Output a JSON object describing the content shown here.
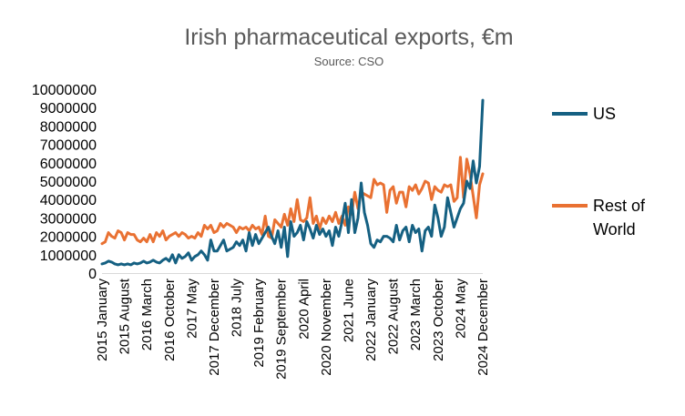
{
  "chart_data": {
    "type": "line",
    "title": "Irish pharmaceutical exports, €m",
    "subtitle": "Source: CSO",
    "xlabel": "",
    "ylabel": "",
    "ylim": [
      0,
      10000000
    ],
    "yticks": [
      0,
      1000000,
      2000000,
      3000000,
      4000000,
      5000000,
      6000000,
      7000000,
      8000000,
      9000000,
      10000000
    ],
    "ytick_labels": [
      "0",
      "1000000",
      "2000000",
      "3000000",
      "4000000",
      "5000000",
      "6000000",
      "7000000",
      "8000000",
      "9000000",
      "10000000"
    ],
    "x_start": "2015 January",
    "x_end": "2024 December",
    "xtick_labels": [
      "2015 January",
      "2015 August",
      "2016 March",
      "2016 October",
      "2017 May",
      "2017 December",
      "2018 July",
      "2019 February",
      "2019 September",
      "2020 April",
      "2020 November",
      "2021 June",
      "2022 January",
      "2022 August",
      "2023 March",
      "2023 October",
      "2024 May",
      "2024 December"
    ],
    "xtick_every": 7,
    "grid": false,
    "legend_position": "right",
    "series": [
      {
        "name": "US",
        "color": "#156082",
        "values": [
          500000,
          550000,
          650000,
          600000,
          500000,
          450000,
          500000,
          450000,
          500000,
          450000,
          550000,
          500000,
          550000,
          650000,
          550000,
          600000,
          700000,
          600000,
          550000,
          700000,
          800000,
          650000,
          1000000,
          550000,
          1000000,
          800000,
          900000,
          1100000,
          700000,
          900000,
          1000000,
          1200000,
          1000000,
          700000,
          1800000,
          1200000,
          1200000,
          1500000,
          1800000,
          1200000,
          1300000,
          1400000,
          1700000,
          1500000,
          1800000,
          1200000,
          2200000,
          1500000,
          2100000,
          1600000,
          1900000,
          2200000,
          2500000,
          2000000,
          1600000,
          2300000,
          1400000,
          2500000,
          900000,
          2800000,
          2000000,
          2200000,
          2600000,
          1800000,
          2800000,
          2400000,
          1900000,
          2600000,
          2100000,
          2400000,
          2000000,
          2300000,
          1500000,
          2500000,
          2000000,
          2800000,
          3800000,
          2200000,
          4000000,
          2200000,
          3000000,
          4900000,
          3300000,
          2600000,
          1600000,
          1400000,
          1800000,
          1700000,
          2000000,
          2000000,
          1900000,
          1700000,
          2600000,
          1800000,
          2300000,
          2500000,
          1700000,
          2600000,
          2200000,
          2400000,
          1200000,
          2300000,
          2500000,
          2000000,
          3700000,
          3000000,
          2000000,
          2500000,
          4100000,
          3300000,
          2500000,
          3000000,
          3500000,
          3800000,
          5000000,
          4600000,
          6100000,
          4900000,
          5800000,
          9400000
        ]
      },
      {
        "name": "Rest of World",
        "color": "#E97132",
        "values": [
          1600000,
          1700000,
          2200000,
          2000000,
          1900000,
          2300000,
          2200000,
          1800000,
          2200000,
          2100000,
          2100000,
          1800000,
          1700000,
          1900000,
          1700000,
          2100000,
          1700000,
          2200000,
          2000000,
          2300000,
          1800000,
          2000000,
          2100000,
          2200000,
          2000000,
          2200000,
          2100000,
          1900000,
          2000000,
          1900000,
          2200000,
          2000000,
          2600000,
          2400000,
          2600000,
          2200000,
          2300000,
          2700000,
          2500000,
          2700000,
          2600000,
          2500000,
          2200000,
          2500000,
          2400000,
          2500000,
          2300000,
          2600000,
          2400000,
          2500000,
          2100000,
          3100000,
          2000000,
          1900000,
          2900000,
          2700000,
          2500000,
          3200000,
          2600000,
          3500000,
          2800000,
          4000000,
          2900000,
          2800000,
          3000000,
          4100000,
          2700000,
          3100000,
          2400000,
          3000000,
          2700000,
          3100000,
          2800000,
          3300000,
          2700000,
          3100000,
          2600000,
          3600000,
          3200000,
          4400000,
          3500000,
          4400000,
          4300000,
          4200000,
          4100000,
          5100000,
          4800000,
          4900000,
          4800000,
          3300000,
          4500000,
          4700000,
          3800000,
          4400000,
          4400000,
          3600000,
          4700000,
          4500000,
          4800000,
          4300000,
          4600000,
          5000000,
          4900000,
          4000000,
          4700000,
          4500000,
          4400000,
          4800000,
          4700000,
          4800000,
          3900000,
          4100000,
          6300000,
          4100000,
          6200000,
          5400000,
          4200000,
          3000000,
          4800000,
          5400000
        ]
      }
    ]
  }
}
